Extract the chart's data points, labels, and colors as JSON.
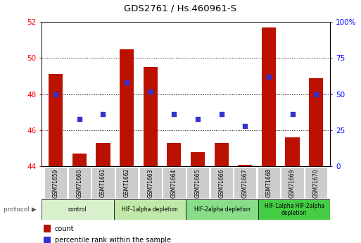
{
  "title": "GDS2761 / Hs.460961-S",
  "samples": [
    "GSM71659",
    "GSM71660",
    "GSM71661",
    "GSM71662",
    "GSM71663",
    "GSM71664",
    "GSM71665",
    "GSM71666",
    "GSM71667",
    "GSM71668",
    "GSM71669",
    "GSM71670"
  ],
  "counts": [
    49.1,
    44.7,
    45.3,
    50.5,
    49.5,
    45.3,
    44.8,
    45.3,
    44.1,
    51.7,
    45.6,
    48.9
  ],
  "percentile_ranks_pct": [
    50.0,
    33.0,
    36.0,
    58.0,
    52.0,
    36.0,
    33.0,
    36.0,
    28.0,
    62.0,
    36.0,
    50.0
  ],
  "ylim_left": [
    44,
    52
  ],
  "ylim_right": [
    0,
    100
  ],
  "yticks_left": [
    44,
    46,
    48,
    50,
    52
  ],
  "yticks_right": [
    0,
    25,
    50,
    75,
    100
  ],
  "ytick_labels_right": [
    "0",
    "25",
    "50",
    "75",
    "100%"
  ],
  "bar_color": "#bb1100",
  "dot_color": "#3333cc",
  "grid_color": "#000000",
  "label_bg_color": "#cccccc",
  "protocol_groups": [
    {
      "label": "control",
      "start": 0,
      "end": 3,
      "color": "#d8f0cc"
    },
    {
      "label": "HIF-1alpha depletion",
      "start": 3,
      "end": 6,
      "color": "#c0e8a8"
    },
    {
      "label": "HIF-2alpha depletion",
      "start": 6,
      "end": 9,
      "color": "#88dd88"
    },
    {
      "label": "HIF-1alpha HIF-2alpha\ndepletion",
      "start": 9,
      "end": 12,
      "color": "#44cc44"
    }
  ],
  "legend_items": [
    {
      "label": "count",
      "color": "#bb1100"
    },
    {
      "label": "percentile rank within the sample",
      "color": "#3333cc"
    }
  ],
  "protocol_label": "protocol"
}
